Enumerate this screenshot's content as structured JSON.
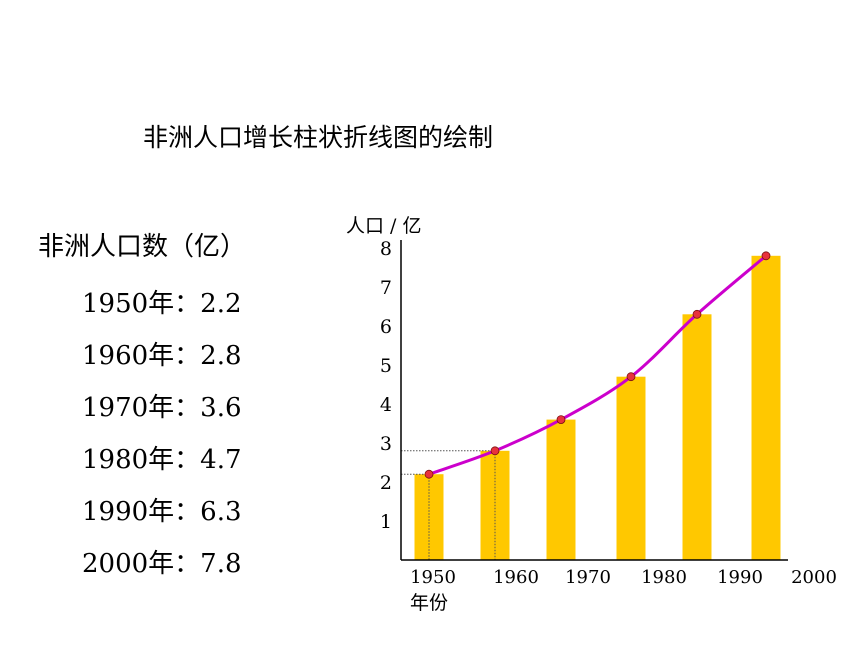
{
  "title": "非洲人口增长柱状折线图的绘制",
  "population_list": {
    "heading": "非洲人口数（亿）",
    "entries": [
      {
        "label": "1950年：2.2"
      },
      {
        "label": "1960年：2.8"
      },
      {
        "label": "1970年：3.6"
      },
      {
        "label": "1980年：4.7"
      },
      {
        "label": "1990年：6.3"
      },
      {
        "label": "2000年：7.8"
      }
    ]
  },
  "chart_data": {
    "type": "bar",
    "ylabel": "人口 / 亿",
    "xlabel": "年份",
    "categories": [
      "1950",
      "1960",
      "1970",
      "1980",
      "1990",
      "2000"
    ],
    "x_tick_labels": [
      "1950",
      "1960",
      "1970",
      "1980",
      "1990",
      "2000"
    ],
    "y_ticks": [
      "1",
      "2",
      "3",
      "4",
      "5",
      "6",
      "7",
      "8"
    ],
    "ylim": [
      0,
      8
    ],
    "series": [
      {
        "kind": "bar",
        "values": [
          2.2,
          2.8,
          3.6,
          4.7,
          6.3,
          7.8
        ]
      },
      {
        "kind": "line",
        "values": [
          2.2,
          2.8,
          3.6,
          4.7,
          6.3,
          7.8
        ]
      }
    ],
    "reference_lines_for": [
      "1950",
      "1960"
    ],
    "colors": {
      "bar": "#FFC800",
      "line": "#CC00CC",
      "marker": "#E8323C",
      "axis": "#000000"
    }
  }
}
